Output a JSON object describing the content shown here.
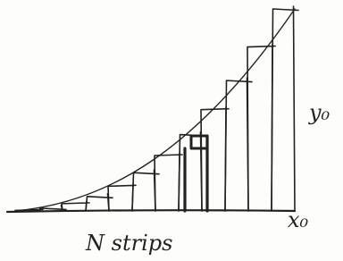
{
  "labels": {
    "strips": "N strips",
    "x_end": "x₀",
    "y_end": "y₀"
  }
}
